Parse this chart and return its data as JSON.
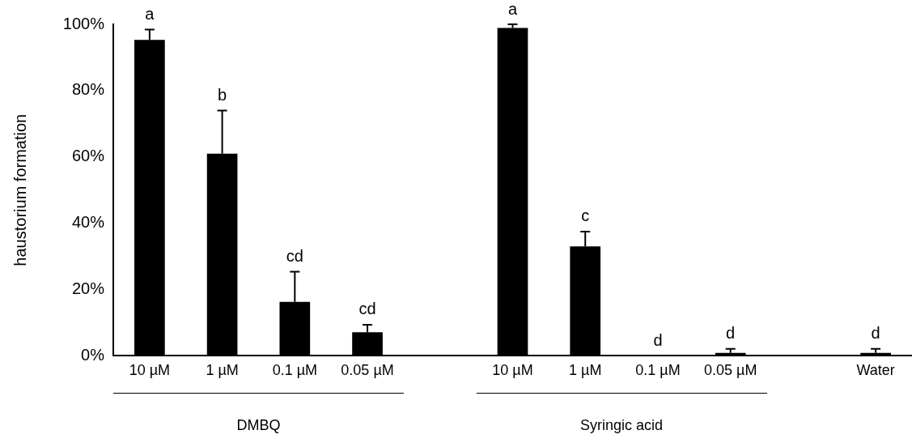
{
  "chart_data": {
    "type": "bar",
    "ylabel": "haustorium formation",
    "categories": [
      "10 µM",
      "1 µM",
      "0.1 µM",
      "0.05 µM",
      null,
      "10 µM",
      "1 µM",
      "0.1 µM",
      "0.05 µM",
      null,
      "Water"
    ],
    "values": [
      95.3,
      61,
      16.3,
      7.1,
      null,
      98.9,
      33,
      0,
      0.9,
      null,
      0.9
    ],
    "errors": [
      [
        95.3,
        98.4
      ],
      [
        61,
        74
      ],
      [
        16.3,
        25.4
      ],
      [
        7.1,
        9.4
      ],
      null,
      [
        98.9,
        100
      ],
      [
        33,
        37.5
      ],
      null,
      [
        0.9,
        2.1
      ],
      null,
      [
        0.9,
        2.1
      ]
    ],
    "value_labels": [
      "a",
      "b",
      "cd",
      "cd",
      null,
      "a",
      "c",
      "d",
      "d",
      null,
      "d"
    ],
    "color": "#000000",
    "ylim": [
      0,
      100
    ],
    "yticks": [
      {
        "value": 0,
        "label": "0%"
      },
      {
        "value": 20,
        "label": "20%"
      },
      {
        "value": 40,
        "label": "40%"
      },
      {
        "value": 60,
        "label": "60%"
      },
      {
        "value": 80,
        "label": "80%"
      },
      {
        "value": 100,
        "label": "100%"
      }
    ],
    "annotations": [
      "DMBQ",
      "Syringic acid"
    ],
    "grid": false,
    "legend": false
  }
}
